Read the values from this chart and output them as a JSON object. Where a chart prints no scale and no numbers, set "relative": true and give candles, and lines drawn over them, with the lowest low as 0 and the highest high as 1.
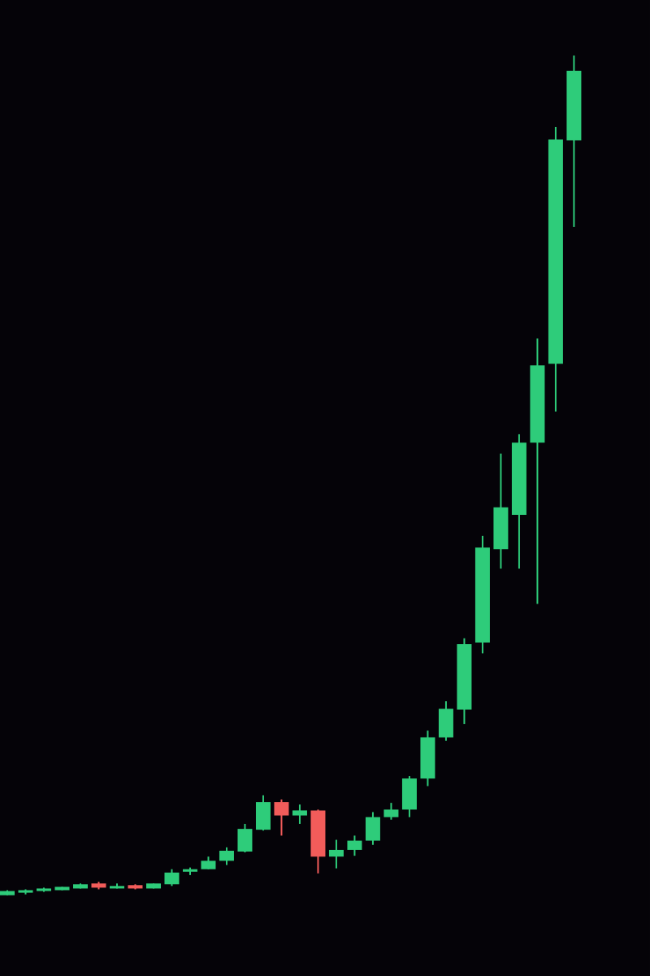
{
  "chart_data": {
    "type": "candlestick",
    "relative": true,
    "categories": [
      null,
      null,
      null,
      null,
      null,
      null,
      null,
      null,
      null,
      null,
      null,
      null,
      null,
      null,
      null,
      null,
      null,
      null,
      null,
      null,
      null,
      null,
      null,
      null,
      null,
      null,
      null,
      null,
      null,
      null,
      null,
      null
    ],
    "ohlc": [
      [
        0,
        0.006,
        0,
        0.005
      ],
      [
        0.003,
        0.007,
        0.001,
        0.006
      ],
      [
        0.005,
        0.009,
        0.004,
        0.008
      ],
      [
        0.006,
        0.01,
        0.006,
        0.01
      ],
      [
        0.008,
        0.014,
        0.008,
        0.013
      ],
      [
        0.014,
        0.016,
        0.007,
        0.009
      ],
      [
        0.008,
        0.014,
        0.008,
        0.011
      ],
      [
        0.012,
        0.013,
        0.007,
        0.008
      ],
      [
        0.008,
        0.014,
        0.008,
        0.014
      ],
      [
        0.013,
        0.031,
        0.011,
        0.027
      ],
      [
        0.028,
        0.033,
        0.024,
        0.031
      ],
      [
        0.031,
        0.046,
        0.031,
        0.041
      ],
      [
        0.041,
        0.057,
        0.036,
        0.053
      ],
      [
        0.052,
        0.085,
        0.051,
        0.079
      ],
      [
        0.078,
        0.119,
        0.077,
        0.111
      ],
      [
        0.111,
        0.114,
        0.071,
        0.095
      ],
      [
        0.095,
        0.108,
        0.085,
        0.101
      ],
      [
        0.101,
        0.102,
        0.026,
        0.046
      ],
      [
        0.046,
        0.066,
        0.032,
        0.054
      ],
      [
        0.054,
        0.071,
        0.047,
        0.065
      ],
      [
        0.065,
        0.099,
        0.06,
        0.093
      ],
      [
        0.093,
        0.11,
        0.09,
        0.102
      ],
      [
        0.102,
        0.142,
        0.093,
        0.139
      ],
      [
        0.139,
        0.196,
        0.13,
        0.188
      ],
      [
        0.188,
        0.231,
        0.184,
        0.222
      ],
      [
        0.221,
        0.306,
        0.204,
        0.299
      ],
      [
        0.301,
        0.428,
        0.288,
        0.414
      ],
      [
        0.412,
        0.526,
        0.389,
        0.462
      ],
      [
        0.453,
        0.549,
        0.389,
        0.539
      ],
      [
        0.539,
        0.663,
        0.347,
        0.631
      ],
      [
        0.633,
        0.915,
        0.576,
        0.9
      ],
      [
        0.899,
        1,
        0.796,
        0.982
      ]
    ],
    "colors": [
      "#2ecc7a",
      "#2ecc7a",
      "#2ecc7a",
      "#2ecc7a",
      "#2ecc7a",
      "#f25c5a",
      "#2ecc7a",
      "#f25c5a",
      "#2ecc7a",
      "#2ecc7a",
      "#2ecc7a",
      "#2ecc7a",
      "#2ecc7a",
      "#2ecc7a",
      "#2ecc7a",
      "#f25c5a",
      "#2ecc7a",
      "#f25c5a",
      "#2ecc7a",
      "#2ecc7a",
      "#2ecc7a",
      "#2ecc7a",
      "#2ecc7a",
      "#2ecc7a",
      "#2ecc7a",
      "#2ecc7a",
      "#2ecc7a",
      "#2ecc7a",
      "#2ecc7a",
      "#2ecc7a",
      "#2ecc7a",
      "#2ecc7a"
    ]
  }
}
